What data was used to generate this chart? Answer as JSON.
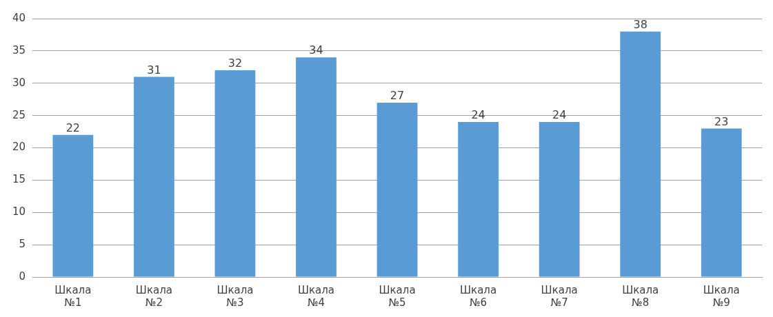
{
  "chart_data": {
    "type": "bar",
    "categories": [
      "Шкала №1",
      "Шкала №2",
      "Шкала №3",
      "Шкала №4",
      "Шкала №5",
      "Шкала №6",
      "Шкала №7",
      "Шкала №8",
      "Шкала №9"
    ],
    "values": [
      22,
      31,
      32,
      34,
      27,
      24,
      24,
      38,
      23
    ],
    "color": "#5b9bd5",
    "ylim": [
      0,
      40
    ],
    "yticks": [
      0,
      5,
      10,
      15,
      20,
      25,
      30,
      35,
      40
    ],
    "grid": "y",
    "data_labels": true,
    "legend": false
  }
}
